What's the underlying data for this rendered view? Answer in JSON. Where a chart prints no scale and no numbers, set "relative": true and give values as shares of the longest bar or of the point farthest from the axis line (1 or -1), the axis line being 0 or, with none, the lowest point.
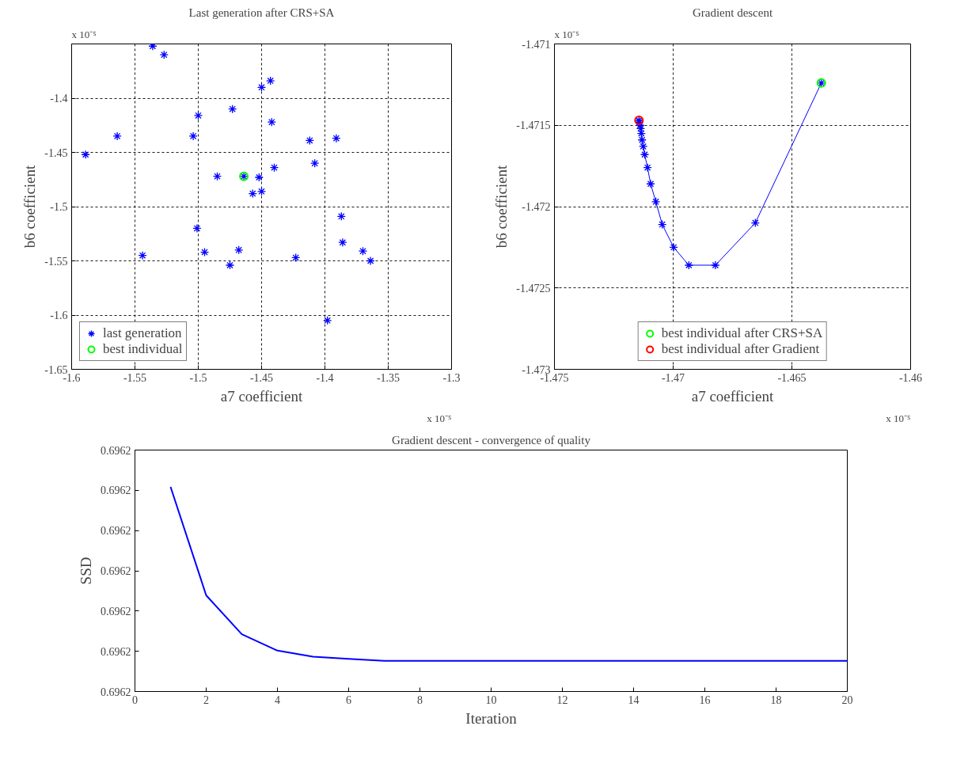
{
  "chart_data": [
    {
      "type": "scatter",
      "title": "Last generation after CRS+SA",
      "xlabel": "a7 coefficient",
      "ylabel": "b6 coefficient",
      "annotations": [
        "x 10⁻⁵",
        "x 10⁻⁵"
      ],
      "xlim": [
        -1.6,
        -1.3
      ],
      "xticks": [
        -1.6,
        -1.55,
        -1.5,
        -1.45,
        -1.4,
        -1.35,
        -1.3
      ],
      "ylim": [
        -1.65,
        -1.35
      ],
      "yticks": [
        -1.65,
        -1.6,
        -1.55,
        -1.5,
        -1.45,
        -1.4
      ],
      "grid": true,
      "legend": "bottom left",
      "series": [
        {
          "name": "last generation",
          "color": "#0000ff",
          "marker": "cross",
          "x": [
            -1.536,
            -1.527,
            -1.443,
            -1.45,
            -1.473,
            -1.5,
            -1.442,
            -1.564,
            -1.504,
            -1.412,
            -1.391,
            -1.589,
            -1.408,
            -1.44,
            -1.485,
            -1.464,
            -1.452,
            -1.45,
            -1.457,
            -1.387,
            -1.501,
            -1.386,
            -1.544,
            -1.495,
            -1.468,
            -1.475,
            -1.423,
            -1.37,
            -1.364,
            -1.398
          ],
          "values": [
            -1.352,
            -1.36,
            -1.384,
            -1.39,
            -1.41,
            -1.416,
            -1.422,
            -1.435,
            -1.435,
            -1.439,
            -1.437,
            -1.452,
            -1.46,
            -1.464,
            -1.472,
            -1.472,
            -1.473,
            -1.486,
            -1.488,
            -1.509,
            -1.52,
            -1.533,
            -1.545,
            -1.542,
            -1.54,
            -1.554,
            -1.547,
            -1.541,
            -1.55,
            -1.605
          ]
        },
        {
          "type": "scatter",
          "name": "best individual",
          "color": "#00ff00",
          "marker": "circle",
          "x": [
            -1.464
          ],
          "values": [
            -1.472
          ]
        }
      ]
    },
    {
      "type": "line",
      "title": "Gradient descent",
      "xlabel": "a7 coefficient",
      "ylabel": "b6 coefficient",
      "annotations": [
        "x 10⁻⁵",
        "x 10⁻⁵"
      ],
      "xlim": [
        -1.475,
        -1.46
      ],
      "xticks": [
        -1.475,
        -1.47,
        -1.465,
        -1.46
      ],
      "ylim": [
        -1.473,
        -1.471
      ],
      "yticks": [
        -1.473,
        -1.4725,
        -1.472,
        -1.4715,
        -1.471
      ],
      "grid": true,
      "legend": "bottom",
      "series": [
        {
          "color": "#0000ff",
          "marker": "cross",
          "x": [
            -1.46376,
            -1.46654,
            -1.46822,
            -1.46934,
            -1.46998,
            -1.47046,
            -1.47073,
            -1.47095,
            -1.47108,
            -1.4712,
            -1.47126,
            -1.47131,
            -1.47134,
            -1.47137,
            -1.47139,
            -1.47142,
            -1.47144
          ],
          "values": [
            -1.47124,
            -1.4721,
            -1.47236,
            -1.47236,
            -1.47225,
            -1.47211,
            -1.47197,
            -1.47186,
            -1.47176,
            -1.47168,
            -1.47163,
            -1.47159,
            -1.47155,
            -1.47152,
            -1.4715,
            -1.47148,
            -1.47147
          ]
        },
        {
          "type": "scatter",
          "name": "best individual after CRS+SA",
          "color": "#00ff00",
          "marker": "circle",
          "x": [
            -1.46376
          ],
          "values": [
            -1.47124
          ]
        },
        {
          "type": "scatter",
          "name": "best individual after Gradient",
          "color": "#ff0000",
          "marker": "circle",
          "x": [
            -1.47144
          ],
          "values": [
            -1.47147
          ]
        }
      ]
    },
    {
      "type": "line",
      "title": "Gradient descent - convergence of quality",
      "xlabel": "Iteration",
      "ylabel": "SSD",
      "xlim": [
        0,
        20
      ],
      "xticks": [
        0,
        2,
        4,
        6,
        8,
        10,
        12,
        14,
        16,
        18,
        20
      ],
      "relative": true,
      "annotations": [
        "0.6962",
        "0.6962",
        "0.6962",
        "0.6962",
        "0.6962",
        "0.6962",
        "0.6962"
      ],
      "x": [
        1,
        2,
        3,
        4,
        5,
        6,
        7,
        8,
        9,
        10,
        11,
        12,
        13,
        14,
        15,
        16,
        17,
        18,
        19,
        20
      ],
      "series": [
        {
          "color": "#0000ff",
          "marker": "none",
          "values": [
            1,
            0.47,
            0.28,
            0.2,
            0.17,
            0.16,
            0.15,
            0.15,
            0.15,
            0.15,
            0.15,
            0.15,
            0.15,
            0.15,
            0.15,
            0.15,
            0.15,
            0.15,
            0.15,
            0.15
          ]
        }
      ]
    }
  ]
}
